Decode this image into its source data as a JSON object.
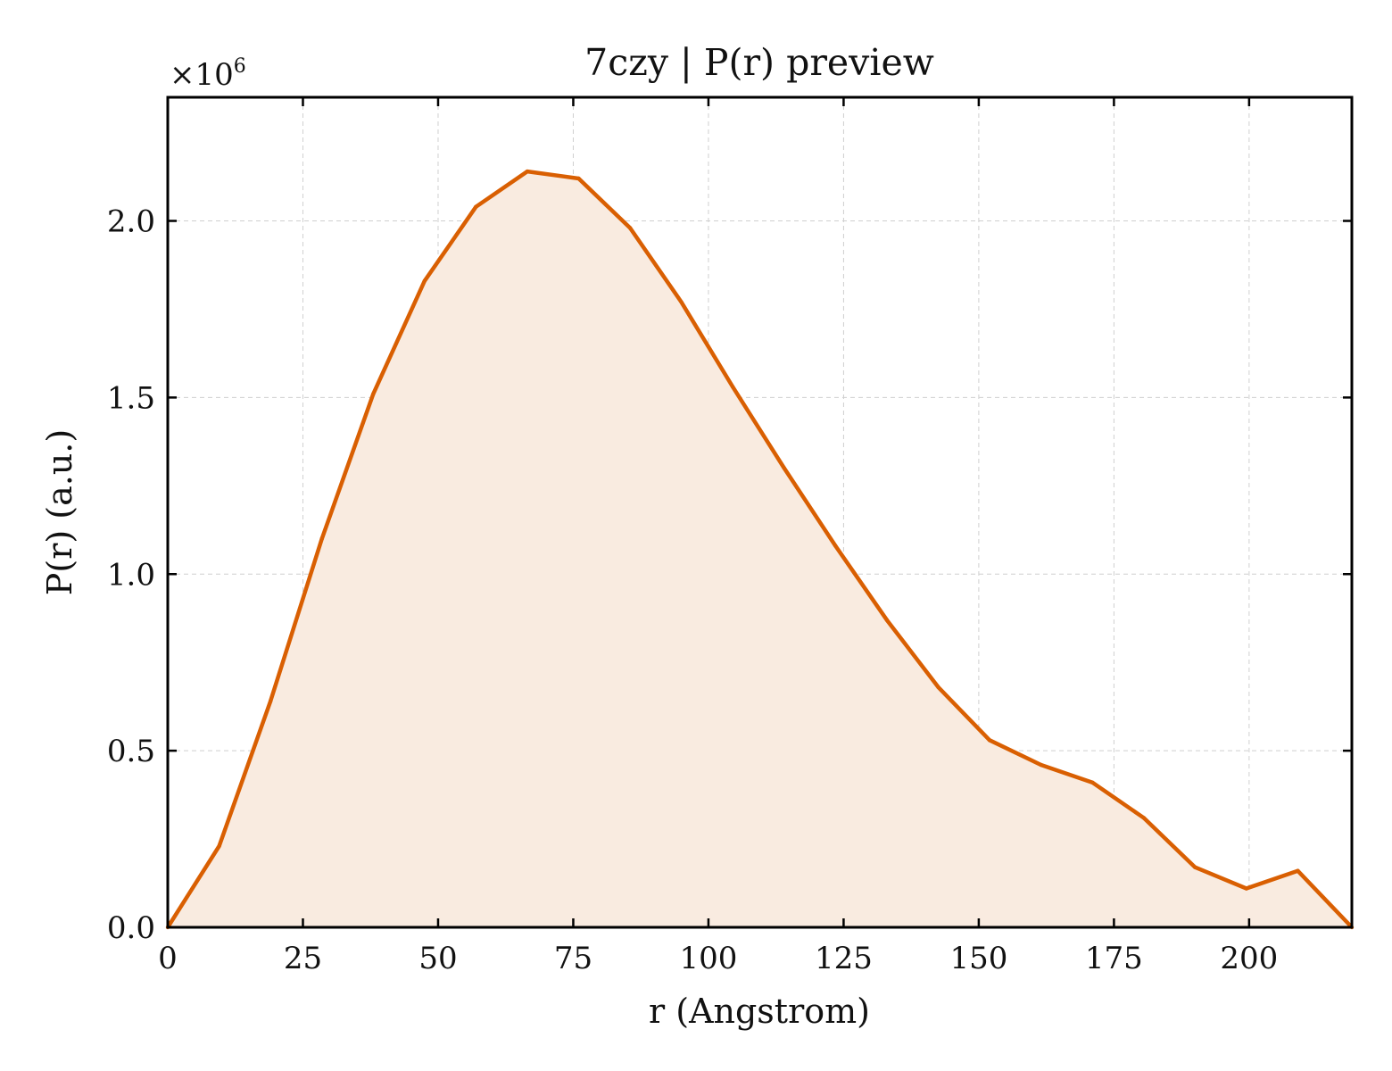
{
  "chart_data": {
    "type": "area",
    "title": "7czy | P(r) preview",
    "xlabel": "r (Angstrom)",
    "ylabel": "P(r) (a.u.)",
    "y_multiplier": {
      "base": "×10",
      "exponent": "6"
    },
    "xlim": [
      0,
      219
    ],
    "ylim": [
      0,
      2.35
    ],
    "x_ticks": [
      0,
      25,
      50,
      75,
      100,
      125,
      150,
      175,
      200
    ],
    "x_tick_labels": [
      "0",
      "25",
      "50",
      "75",
      "100",
      "125",
      "150",
      "175",
      "200"
    ],
    "y_ticks": [
      0,
      0.5,
      1.0,
      1.5,
      2.0
    ],
    "y_tick_labels": [
      "0.0",
      "0.5",
      "1.0",
      "1.5",
      "2.0"
    ],
    "grid": true,
    "colors": {
      "line": "#d95f02",
      "fill": "#f9ebe0"
    },
    "series": [
      {
        "x": [
          0,
          9.5,
          19,
          28.5,
          38,
          47.5,
          57,
          66.5,
          76,
          85.5,
          95,
          104.5,
          114,
          123.5,
          133,
          142.5,
          152,
          161.5,
          171,
          180.5,
          190,
          199.5,
          209,
          219
        ],
        "y": [
          0.0,
          0.23,
          0.64,
          1.1,
          1.51,
          1.83,
          2.04,
          2.14,
          2.12,
          1.98,
          1.77,
          1.53,
          1.3,
          1.08,
          0.87,
          0.68,
          0.53,
          0.46,
          0.41,
          0.31,
          0.17,
          0.11,
          0.16,
          0.0
        ]
      }
    ]
  }
}
